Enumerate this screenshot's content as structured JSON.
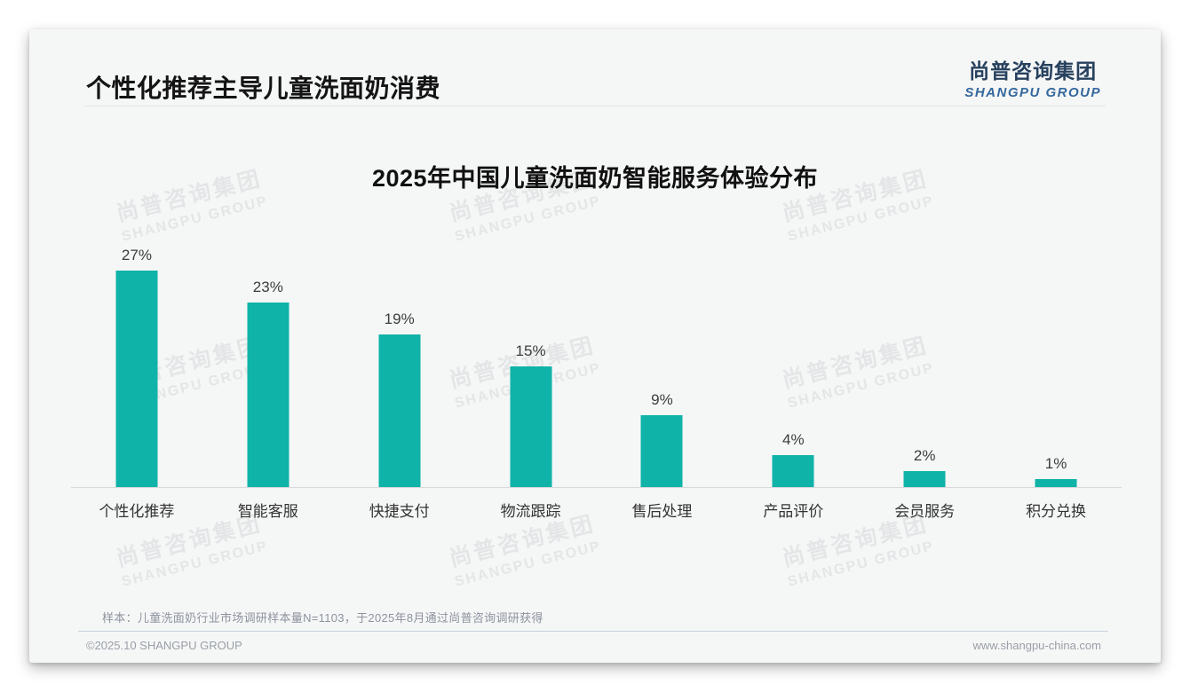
{
  "header": {
    "title": "个性化推荐主导儿童洗面奶消费",
    "logo_cn": "尚普咨询集团",
    "logo_en": "SHANGPU GROUP"
  },
  "watermark": {
    "cn": "尚普咨询集团",
    "en": "SHANGPU GROUP"
  },
  "chart_data": {
    "type": "bar",
    "title": "2025年中国儿童洗面奶智能服务体验分布",
    "categories": [
      "个性化推荐",
      "智能客服",
      "快捷支付",
      "物流跟踪",
      "售后处理",
      "产品评价",
      "会员服务",
      "积分兑换"
    ],
    "values": [
      27,
      23,
      19,
      15,
      9,
      4,
      2,
      1
    ],
    "value_labels": [
      "27%",
      "23%",
      "19%",
      "15%",
      "9%",
      "4%",
      "2%",
      "1%"
    ],
    "unit": "%",
    "ylim": [
      0,
      30
    ],
    "grid": false,
    "legend": false,
    "bar_color": "#0fb3a8"
  },
  "footer": {
    "sample_note": "样本：儿童洗面奶行业市场调研样本量N=1103，于2025年8月通过尚普咨询调研获得",
    "copyright": "©2025.10 SHANGPU GROUP",
    "website": "www.shangpu-china.com"
  },
  "colors": {
    "bar": "#0fb3a8",
    "logo_cn": "#27415e",
    "logo_en": "#34689e",
    "card_background": "#f5f6f6"
  }
}
